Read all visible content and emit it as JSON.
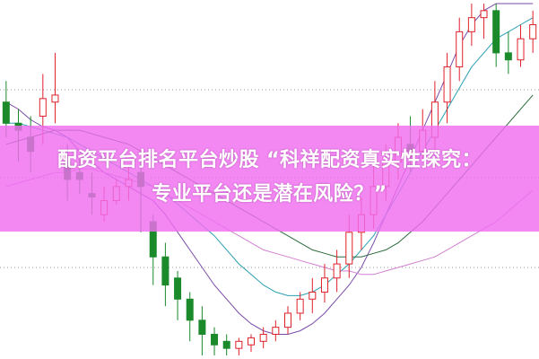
{
  "title": {
    "line1": "配资平台排名平台炒股 “科祥配资真实性探究：",
    "line2": "专业平台还是潜在风险？”"
  },
  "colors": {
    "banner": "#f06ef0",
    "up": "#e0202a",
    "down": "#1a8a2a",
    "ma1": "#7a4aa8",
    "ma2": "#2aa0b0",
    "ma3": "#2a6a3a",
    "ma4": "#d080d0",
    "grid": "#999999"
  },
  "chart_data": {
    "type": "candlestick",
    "title": "",
    "grid": true,
    "ylim": [
      0,
      100
    ],
    "candles": [
      {
        "o": 72,
        "h": 78,
        "c": 66,
        "l": 62
      },
      {
        "o": 66,
        "h": 70,
        "c": 64,
        "l": 55
      },
      {
        "o": 62,
        "h": 68,
        "c": 58,
        "l": 52
      },
      {
        "o": 68,
        "h": 80,
        "c": 73,
        "l": 60
      },
      {
        "o": 72,
        "h": 86,
        "c": 74,
        "l": 66
      },
      {
        "o": 55,
        "h": 60,
        "c": 50,
        "l": 44
      },
      {
        "o": 52,
        "h": 56,
        "c": 50,
        "l": 46
      },
      {
        "o": 46,
        "h": 52,
        "c": 45,
        "l": 40
      },
      {
        "o": 40,
        "h": 48,
        "c": 44,
        "l": 38
      },
      {
        "o": 44,
        "h": 50,
        "c": 48,
        "l": 43
      },
      {
        "o": 48,
        "h": 54,
        "c": 50,
        "l": 44
      },
      {
        "o": 52,
        "h": 56,
        "c": 48,
        "l": 35
      },
      {
        "o": 38,
        "h": 40,
        "c": 28,
        "l": 20
      },
      {
        "o": 28,
        "h": 32,
        "c": 20,
        "l": 14
      },
      {
        "o": 22,
        "h": 24,
        "c": 16,
        "l": 10
      },
      {
        "o": 16,
        "h": 18,
        "c": 10,
        "l": 4
      },
      {
        "o": 10,
        "h": 14,
        "c": 6,
        "l": 0
      },
      {
        "o": 6,
        "h": 8,
        "c": 3,
        "l": 0
      },
      {
        "o": 4,
        "h": 6,
        "c": 2,
        "l": 0
      },
      {
        "o": 2,
        "h": 5,
        "c": 4,
        "l": 0
      },
      {
        "o": 3,
        "h": 6,
        "c": 5,
        "l": 1
      },
      {
        "o": 4,
        "h": 8,
        "c": 6,
        "l": 2
      },
      {
        "o": 6,
        "h": 10,
        "c": 8,
        "l": 4
      },
      {
        "o": 8,
        "h": 14,
        "c": 12,
        "l": 6
      },
      {
        "o": 12,
        "h": 18,
        "c": 16,
        "l": 10
      },
      {
        "o": 16,
        "h": 22,
        "c": 18,
        "l": 12
      },
      {
        "o": 18,
        "h": 26,
        "c": 22,
        "l": 15
      },
      {
        "o": 22,
        "h": 30,
        "c": 26,
        "l": 18
      },
      {
        "o": 26,
        "h": 40,
        "c": 35,
        "l": 22
      },
      {
        "o": 35,
        "h": 45,
        "c": 40,
        "l": 30
      },
      {
        "o": 40,
        "h": 55,
        "c": 48,
        "l": 36
      },
      {
        "o": 48,
        "h": 60,
        "c": 55,
        "l": 44
      },
      {
        "o": 55,
        "h": 66,
        "c": 62,
        "l": 50
      },
      {
        "o": 60,
        "h": 68,
        "c": 58,
        "l": 52
      },
      {
        "o": 58,
        "h": 70,
        "c": 64,
        "l": 55
      },
      {
        "o": 62,
        "h": 78,
        "c": 72,
        "l": 58
      },
      {
        "o": 72,
        "h": 86,
        "c": 82,
        "l": 66
      },
      {
        "o": 82,
        "h": 96,
        "c": 92,
        "l": 78
      },
      {
        "o": 92,
        "h": 100,
        "c": 96,
        "l": 88
      },
      {
        "o": 96,
        "h": 100,
        "c": 98,
        "l": 90
      },
      {
        "o": 98,
        "h": 100,
        "c": 86,
        "l": 82
      },
      {
        "o": 86,
        "h": 92,
        "c": 84,
        "l": 80
      },
      {
        "o": 84,
        "h": 94,
        "c": 90,
        "l": 82
      },
      {
        "o": 90,
        "h": 98,
        "c": 94,
        "l": 86
      }
    ],
    "series": [
      {
        "values": [
          72,
          70,
          67,
          65,
          64,
          62,
          58,
          55,
          52,
          50,
          48,
          46,
          44,
          40,
          35,
          30,
          25,
          20,
          16,
          12,
          9,
          7,
          6,
          6,
          7,
          9,
          12,
          16,
          20,
          25,
          32,
          40,
          48,
          56,
          64,
          72,
          80,
          88,
          94,
          98,
          100,
          100,
          100,
          100
        ]
      },
      {
        "values": [
          66,
          66,
          65,
          64,
          63,
          62,
          60,
          58,
          56,
          54,
          52,
          50,
          48,
          46,
          43,
          40,
          37,
          34,
          30,
          26,
          23,
          20,
          18,
          17,
          17,
          18,
          20,
          23,
          26,
          30,
          34,
          40,
          46,
          52,
          58,
          64,
          70,
          76,
          82,
          86,
          90,
          92,
          94,
          96
        ]
      },
      {
        "values": [
          60,
          61,
          62,
          63,
          64,
          64,
          64,
          63,
          62,
          61,
          60,
          58,
          56,
          54,
          52,
          50,
          48,
          46,
          44,
          42,
          40,
          38,
          36,
          34,
          32,
          30,
          29,
          28,
          28,
          28,
          29,
          30,
          32,
          35,
          38,
          42,
          46,
          50,
          54,
          58,
          62,
          66,
          70,
          74
        ]
      },
      {
        "values": [
          48,
          49,
          50,
          51,
          52,
          52,
          53,
          53,
          52,
          51,
          50,
          49,
          48,
          46,
          44,
          42,
          40,
          38,
          36,
          34,
          32,
          30,
          29,
          28,
          27,
          26,
          25,
          24,
          24,
          23,
          23,
          24,
          25,
          26,
          27,
          28,
          30,
          32,
          34,
          36,
          38,
          41,
          44,
          47
        ]
      }
    ]
  }
}
